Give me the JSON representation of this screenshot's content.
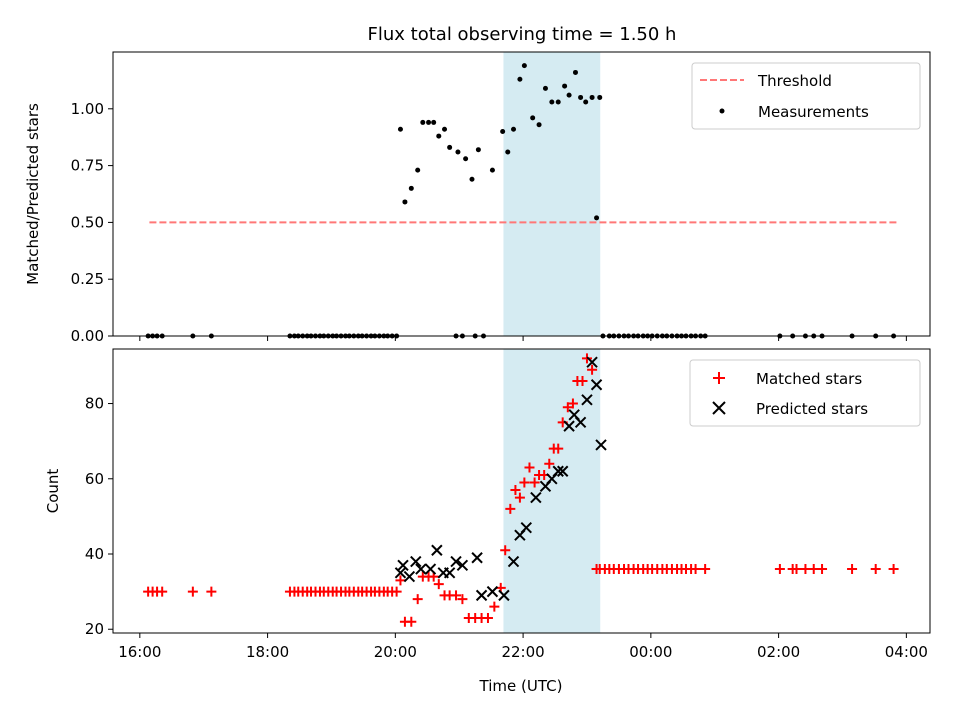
{
  "title": "Flux total observing time = 1.50 h",
  "colors": {
    "threshold": "#ff7777",
    "measurement": "#000000",
    "matched": "#ff0000",
    "predicted": "#000000",
    "span_fill": "#add8e6"
  },
  "x_axis": {
    "label": "Time (UTC)",
    "ticks": [
      16,
      18,
      20,
      22,
      24,
      26,
      28
    ],
    "tick_labels": [
      "16:00",
      "18:00",
      "20:00",
      "22:00",
      "00:00",
      "02:00",
      "04:00"
    ],
    "lim": [
      15.58,
      28.37
    ]
  },
  "chart_data": [
    {
      "type": "scatter",
      "xlabel": "",
      "ylabel": "Matched/Predicted stars",
      "xlim": [
        15.58,
        28.37
      ],
      "ylim": [
        0,
        1.25
      ],
      "yticks": [
        0,
        0.25,
        0.5,
        0.75,
        1.0
      ],
      "ytick_labels": [
        "0.00",
        "0.25",
        "0.50",
        "0.75",
        "1.00"
      ],
      "shaded_span": [
        21.7,
        23.2
      ],
      "legend": {
        "position": "upper right",
        "entries": [
          "Threshold",
          "Measurements"
        ]
      },
      "series": [
        {
          "name": "Threshold",
          "style": "dashed-line",
          "x": [
            16.15,
            27.85
          ],
          "y": [
            0.5,
            0.5
          ]
        },
        {
          "name": "Measurements",
          "style": "dot",
          "x": [
            16.13,
            16.2,
            16.27,
            16.35,
            16.83,
            17.12,
            18.35,
            18.42,
            18.48,
            18.55,
            18.62,
            18.68,
            18.75,
            18.82,
            18.88,
            18.95,
            19.02,
            19.08,
            19.15,
            19.22,
            19.28,
            19.35,
            19.42,
            19.48,
            19.55,
            19.62,
            19.68,
            19.75,
            19.82,
            19.88,
            19.95,
            20.02,
            20.08,
            20.15,
            20.25,
            20.35,
            20.43,
            20.52,
            20.6,
            20.68,
            20.77,
            20.85,
            20.98,
            21.1,
            21.2,
            21.3,
            21.52,
            21.68,
            21.76,
            21.85,
            21.95,
            22.02,
            22.15,
            22.25,
            22.35,
            22.45,
            22.55,
            22.65,
            22.72,
            22.82,
            22.9,
            22.98,
            23.08,
            23.2,
            23.15,
            23.25,
            23.35,
            23.42,
            23.5,
            23.58,
            23.65,
            23.73,
            23.8,
            23.88,
            23.95,
            24.02,
            24.1,
            24.18,
            24.25,
            24.33,
            24.41,
            24.48,
            24.55,
            24.63,
            24.7,
            24.78,
            24.85,
            26.02,
            26.22,
            26.42,
            26.55,
            26.68,
            27.15,
            27.52,
            27.8,
            20.95,
            21.25,
            21.38,
            21.05
          ],
          "y": [
            0,
            0,
            0,
            0,
            0,
            0,
            0,
            0,
            0,
            0,
            0,
            0,
            0,
            0,
            0,
            0,
            0,
            0,
            0,
            0,
            0,
            0,
            0,
            0,
            0,
            0,
            0,
            0,
            0,
            0,
            0,
            0,
            0.91,
            0.59,
            0.65,
            0.73,
            0.94,
            0.94,
            0.94,
            0.88,
            0.91,
            0.83,
            0.81,
            0.78,
            0.69,
            0.82,
            0.73,
            0.9,
            0.81,
            0.91,
            1.13,
            1.19,
            0.96,
            0.93,
            1.09,
            1.03,
            1.03,
            1.1,
            1.06,
            1.16,
            1.05,
            1.03,
            1.05,
            1.05,
            0.52,
            0,
            0,
            0,
            0,
            0,
            0,
            0,
            0,
            0,
            0,
            0,
            0,
            0,
            0,
            0,
            0,
            0,
            0,
            0,
            0,
            0,
            0,
            0,
            0,
            0,
            0,
            0,
            0,
            0,
            0,
            0,
            0,
            0,
            0
          ]
        }
      ]
    },
    {
      "type": "scatter",
      "xlabel": "Time (UTC)",
      "ylabel": "Count",
      "xlim": [
        15.58,
        28.37
      ],
      "ylim": [
        19,
        94.5
      ],
      "yticks": [
        20,
        40,
        60,
        80
      ],
      "ytick_labels": [
        "20",
        "40",
        "60",
        "80"
      ],
      "shaded_span": [
        21.7,
        23.2
      ],
      "legend": {
        "position": "upper right",
        "entries": [
          "Matched stars",
          "Predicted stars"
        ]
      },
      "series": [
        {
          "name": "Matched stars",
          "style": "plus",
          "x": [
            16.13,
            16.2,
            16.27,
            16.35,
            16.83,
            17.12,
            18.35,
            18.42,
            18.48,
            18.55,
            18.62,
            18.68,
            18.75,
            18.82,
            18.88,
            18.95,
            19.02,
            19.08,
            19.15,
            19.22,
            19.28,
            19.35,
            19.42,
            19.48,
            19.55,
            19.62,
            19.68,
            19.75,
            19.82,
            19.88,
            19.95,
            20.02,
            20.08,
            20.15,
            20.25,
            20.35,
            20.43,
            20.52,
            20.6,
            20.68,
            20.77,
            20.85,
            20.95,
            21.05,
            21.15,
            21.25,
            21.35,
            21.45,
            21.55,
            21.65,
            21.72,
            21.8,
            21.88,
            21.95,
            22.02,
            22.1,
            22.18,
            22.25,
            22.33,
            22.41,
            22.48,
            22.55,
            22.62,
            22.7,
            22.78,
            22.85,
            22.93,
            23.0,
            23.08,
            23.15,
            23.2,
            23.28,
            23.35,
            23.42,
            23.5,
            23.58,
            23.65,
            23.73,
            23.8,
            23.88,
            23.95,
            24.02,
            24.1,
            24.18,
            24.25,
            24.33,
            24.41,
            24.48,
            24.55,
            24.63,
            24.7,
            24.85,
            26.02,
            26.22,
            26.28,
            26.42,
            26.55,
            26.68,
            27.15,
            27.52,
            27.8
          ],
          "y": [
            30,
            30,
            30,
            30,
            30,
            30,
            30,
            30,
            30,
            30,
            30,
            30,
            30,
            30,
            30,
            30,
            30,
            30,
            30,
            30,
            30,
            30,
            30,
            30,
            30,
            30,
            30,
            30,
            30,
            30,
            30,
            30,
            33,
            22,
            22,
            28,
            34,
            34,
            34,
            32,
            29,
            29,
            29,
            28,
            23,
            23,
            23,
            23,
            26,
            31,
            41,
            52,
            57,
            55,
            59,
            63,
            59,
            61,
            61,
            64,
            68,
            68,
            75,
            79,
            80,
            86,
            86,
            92,
            89,
            36,
            36,
            36,
            36,
            36,
            36,
            36,
            36,
            36,
            36,
            36,
            36,
            36,
            36,
            36,
            36,
            36,
            36,
            36,
            36,
            36,
            36,
            36,
            36,
            36,
            36,
            36,
            36,
            36,
            36,
            36,
            36
          ]
        },
        {
          "name": "Predicted stars",
          "style": "x",
          "x": [
            20.08,
            20.12,
            20.22,
            20.32,
            20.4,
            20.55,
            20.65,
            20.75,
            20.85,
            20.95,
            21.05,
            21.28,
            21.35,
            21.52,
            21.7,
            21.85,
            21.95,
            22.05,
            22.2,
            22.35,
            22.45,
            22.55,
            22.62,
            22.72,
            22.8,
            22.9,
            23.0,
            23.08,
            23.15,
            23.22
          ],
          "y": [
            35,
            37,
            34,
            38,
            36,
            36,
            41,
            35,
            35,
            38,
            37,
            39,
            29,
            30,
            29,
            38,
            45,
            47,
            55,
            58,
            60,
            62,
            62,
            74,
            77,
            75,
            81,
            91,
            85,
            69
          ]
        }
      ]
    }
  ]
}
